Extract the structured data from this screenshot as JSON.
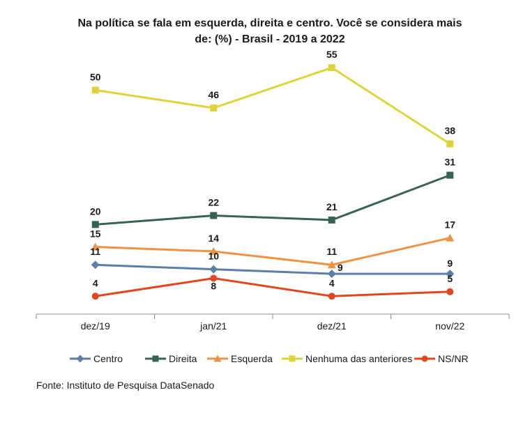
{
  "chart_data": {
    "type": "line",
    "title_lines": [
      "Na política se fala em esquerda, direita e centro. Você se considera mais",
      "de: (%) - Brasil - 2019 a 2022"
    ],
    "categories": [
      "dez/19",
      "jan/21",
      "dez/21",
      "nov/22"
    ],
    "ylim": [
      0,
      60
    ],
    "grid": false,
    "legend_position": "bottom",
    "series": [
      {
        "name": "Centro",
        "values": [
          11,
          10,
          9,
          9
        ],
        "color": "#5b7fa6",
        "marker": "diamond"
      },
      {
        "name": "Direita",
        "values": [
          20,
          22,
          21,
          31
        ],
        "color": "#376355",
        "marker": "square"
      },
      {
        "name": "Esquerda",
        "values": [
          15,
          14,
          11,
          17
        ],
        "color": "#ee9243",
        "marker": "triangle"
      },
      {
        "name": "Nenhuma das anteriores",
        "values": [
          50,
          46,
          55,
          38
        ],
        "color": "#dfd33a",
        "marker": "square"
      },
      {
        "name": "NS/NR",
        "values": [
          4,
          8,
          4,
          5
        ],
        "color": "#e2461f",
        "marker": "circle"
      }
    ]
  },
  "source": "Fonte: Instituto de Pesquisa DataSenado"
}
